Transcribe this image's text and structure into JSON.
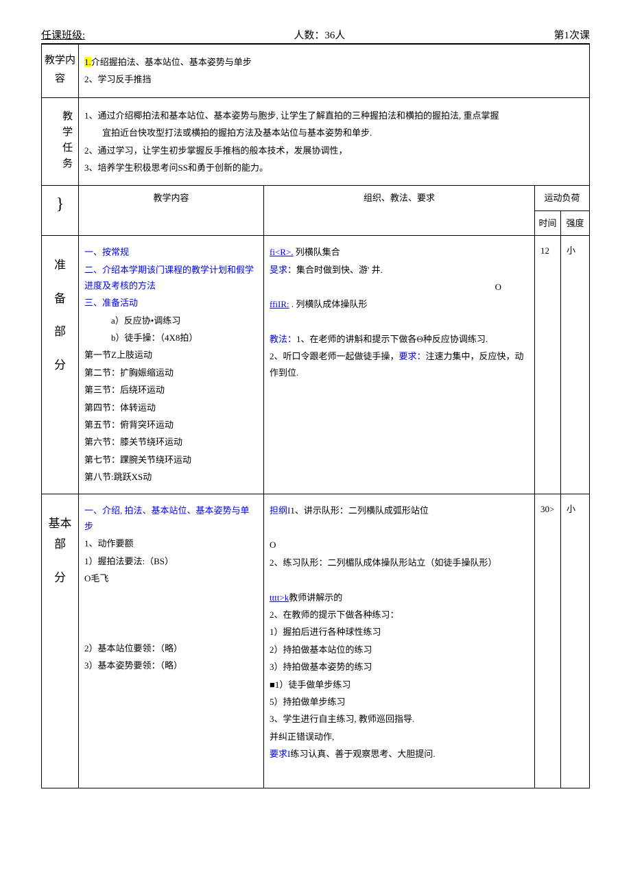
{
  "header": {
    "class_label": "任课班级:",
    "count_label": "人数：36人",
    "lesson_label": "第1次课"
  },
  "row1": {
    "label": "教学内容",
    "line1_prefix": "1.",
    "line1": "介绍握拍法、基本站位、基本姿势与单步",
    "line2": "2、学习反手推挡"
  },
  "row2": {
    "label": "教学任务",
    "line1": "1、通过介绍椰拍法和基本站位、基本姿势与胞步, 让学生了解直拍的三种握拍法和横拍的握拍法, 重点掌握",
    "line1b": "宜拍近台快攻型打法或横拍的握拍方法及基本站位与基本姿势和单步.",
    "line2": "2、通过学习，让学生初步掌握反手推档的般本技术，发展协调性，",
    "line3": "3、培养学生积极思考问SS和勇于创新的能力。"
  },
  "subheader": {
    "curly": "}",
    "content": "教学内容",
    "org": "组织、教法、要求",
    "load": "运动负荷",
    "time": "时间",
    "intensity": "强度"
  },
  "prep": {
    "label1": "准",
    "label2": "备",
    "label3": "部",
    "label4": "分",
    "c1": "一、按常规",
    "c2": "二、介绍本学期该门课程的教学计划和假学进度及考核的方法",
    "c3": "三、准备活动",
    "c4": "a）反应协•调练习",
    "c5": "b）徒手操：（4X8拍）",
    "c6": "第一节Z上肢运动",
    "c7": "第二节：扩胸娠缩运动",
    "c8": "第三节：后绕环运动",
    "c9": "第四节：体转运动",
    "c10": "第五节：俯背突环运动",
    "c11": "第六节：膝关节绕环运动",
    "c12": "第七节：踝腕关节绕环运动",
    "c13": "第八节:跳跃XS动",
    "o1a": "fi<R>.",
    "o1b": " 列横队集合",
    "o2a": "旻求：",
    "o2b": "集合时做到快、游' 井.",
    "o3": "O",
    "o4a": "ffiIR:",
    "o4b": "  . 列横队成体操队形",
    "o5a": "教法：",
    "o5b": "1、在老师的讲斛和提示下做各Θ种反应协调练习.",
    "o6a": "2、听口令跟老师一起做徒手操，",
    "o6b": "要求：",
    "o6c": "注速力集中，反应快，动作到位.",
    "time": "12",
    "intensity": "小"
  },
  "main": {
    "label1": "基本部",
    "label2": "分",
    "c1": "一、介绍, 拍法、基本站位、基本姿势与单步",
    "c2": "1、动作要额",
    "c3": "1）握拍法要法:（BS）",
    "c4": "O毛飞",
    "c5": "2）基本站位要领：（略）",
    "c6": "3）基本姿势要领：（略）",
    "o1a": "担纲I",
    "o1b": "1、讲示队形：二列横队成弧形站位",
    "o2": "O",
    "o3": "2、练习队形：二列楣队成体操队形站立（如徒手操队形）",
    "o4a": "tttt>k",
    "o4b": "教师讲解示的",
    "o5": "2、在教师的提示下做各种练习：",
    "o6": "1）握拍后进行各种球性练习",
    "o7": "2）持拍做基本站位的练习",
    "o8": "3）持拍做基本姿势的练习",
    "o9": "■1）徒手做单步练习",
    "o10": "5）持拍做单步练习",
    "o11": "3、学生进行自主练习, 教师巡回指导.",
    "o12": "并纠正错误动作,",
    "o13a": "要求I",
    "o13b": "练习认真、善于观察思考、大胆提问.",
    "time": "30>",
    "intensity": "小"
  }
}
